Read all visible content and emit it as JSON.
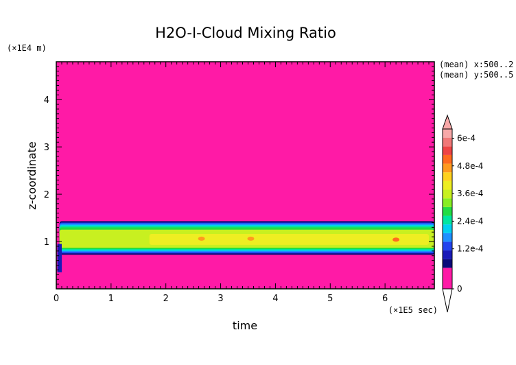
{
  "chart_data": {
    "type": "heatmap",
    "title": "H2O-I-Cloud Mixing Ratio",
    "xlabel": "time",
    "ylabel": "z-coordinate",
    "x_multiplier_label": "(×1E5 sec)",
    "y_multiplier_label": "(×1E4 m)",
    "xlim": [
      0,
      6.9
    ],
    "ylim": [
      0,
      4.8
    ],
    "x_ticks": [
      0,
      1,
      2,
      3,
      4,
      5,
      6
    ],
    "x_tick_labels": [
      "0",
      "1",
      "2",
      "3",
      "4",
      "5",
      "6"
    ],
    "y_ticks": [
      1,
      2,
      3,
      4
    ],
    "y_tick_labels": [
      "1",
      "2",
      "3",
      "4"
    ],
    "annotations": [
      "(mean) x:500..2",
      "(mean) y:500..5"
    ],
    "colorbar": {
      "levels": [
        0,
        4e-05,
        8e-05,
        0.00012,
        0.00016,
        0.0002,
        0.00024,
        0.00028,
        0.00032,
        0.00036,
        0.0004,
        0.00044,
        0.00048,
        0.00052,
        0.00056,
        0.0006,
        0.00064
      ],
      "tick_values": [
        0,
        0.00012,
        0.00024,
        0.00036,
        0.00048,
        0.0006
      ],
      "tick_labels": [
        "0",
        "1.2e-4",
        "2.4e-4",
        "3.6e-4",
        "4.8e-4",
        "6e-4"
      ],
      "colors": [
        "#ff1aa6",
        "#0a0a7a",
        "#1a1ab8",
        "#2244ee",
        "#1e90ff",
        "#00d0f0",
        "#00e6a0",
        "#22dd44",
        "#88ee22",
        "#c8f020",
        "#eeee22",
        "#ffd21e",
        "#ff9a1e",
        "#ff6a1e",
        "#ee4444",
        "#f07878",
        "#f8a8a8"
      ],
      "extend": "both"
    },
    "bands": [
      {
        "label": "0",
        "z_bottom": 0,
        "z_top": 4.8,
        "color": "#ff1aa6"
      },
      {
        "label": "outer",
        "z_bottom": 0.72,
        "z_top": 1.43,
        "color": "#0a0a7a"
      },
      {
        "label": "blue",
        "z_bottom": 0.75,
        "z_top": 1.4,
        "color": "#2244ee"
      },
      {
        "label": "sky",
        "z_bottom": 0.78,
        "z_top": 1.38,
        "color": "#1e90ff"
      },
      {
        "label": "cyan",
        "z_bottom": 0.8,
        "z_top": 1.35,
        "color": "#00d0f0"
      },
      {
        "label": "teal",
        "z_bottom": 0.82,
        "z_top": 1.33,
        "color": "#00e6a0"
      },
      {
        "label": "green",
        "z_bottom": 0.84,
        "z_top": 1.3,
        "color": "#22dd44"
      },
      {
        "label": "yellowgreen",
        "z_bottom": 0.87,
        "z_top": 1.25,
        "color": "#c8f020"
      },
      {
        "label": "yellow",
        "z_bottom": 0.93,
        "z_top": 1.16,
        "color": "#eeee22"
      }
    ],
    "yellow_time_range": [
      1.7,
      6.8
    ],
    "hotspots": [
      {
        "time": 2.65,
        "z": 1.06,
        "color": "#ff9a1e"
      },
      {
        "time": 3.55,
        "z": 1.06,
        "color": "#ff9a1e"
      },
      {
        "time": 6.2,
        "z": 1.04,
        "color": "#ff6a1e"
      }
    ]
  }
}
